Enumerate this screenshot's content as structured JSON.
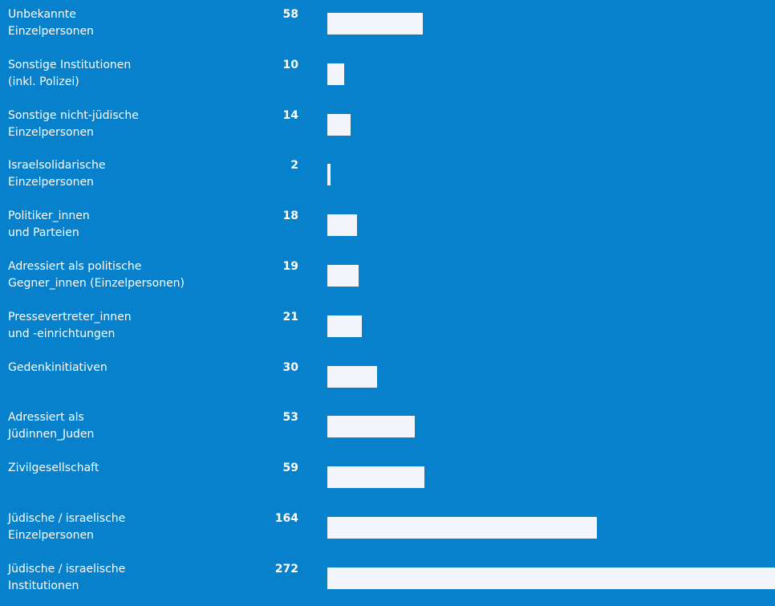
{
  "chart_data": {
    "type": "bar",
    "orientation": "horizontal",
    "bar_color": "#f2f5fc",
    "background_color": "#0781cc",
    "categories": [
      "Unbekannte\nEinzelpersonen",
      "Sonstige Institutionen\n(inkl. Polizei)",
      "Sonstige nicht-jüdische\nEinzelpersonen",
      "Israelsolidarische\nEinzelpersonen",
      "Politiker_innen\nund Parteien",
      "Adressiert als politische\nGegner_innen (Einzelpersonen)",
      "Pressevertreter_innen\nund -einrichtungen",
      "Gedenkinitiativen",
      "Adressiert als\nJüdinnen_Juden",
      "Zivilgesellschaft",
      "Jüdische / israelische\nEinzelpersonen",
      "Jüdische / israelische\nInstitutionen"
    ],
    "values": [
      58,
      10,
      14,
      2,
      18,
      19,
      21,
      30,
      53,
      59,
      164,
      272
    ],
    "xlim": [
      0,
      272
    ]
  }
}
